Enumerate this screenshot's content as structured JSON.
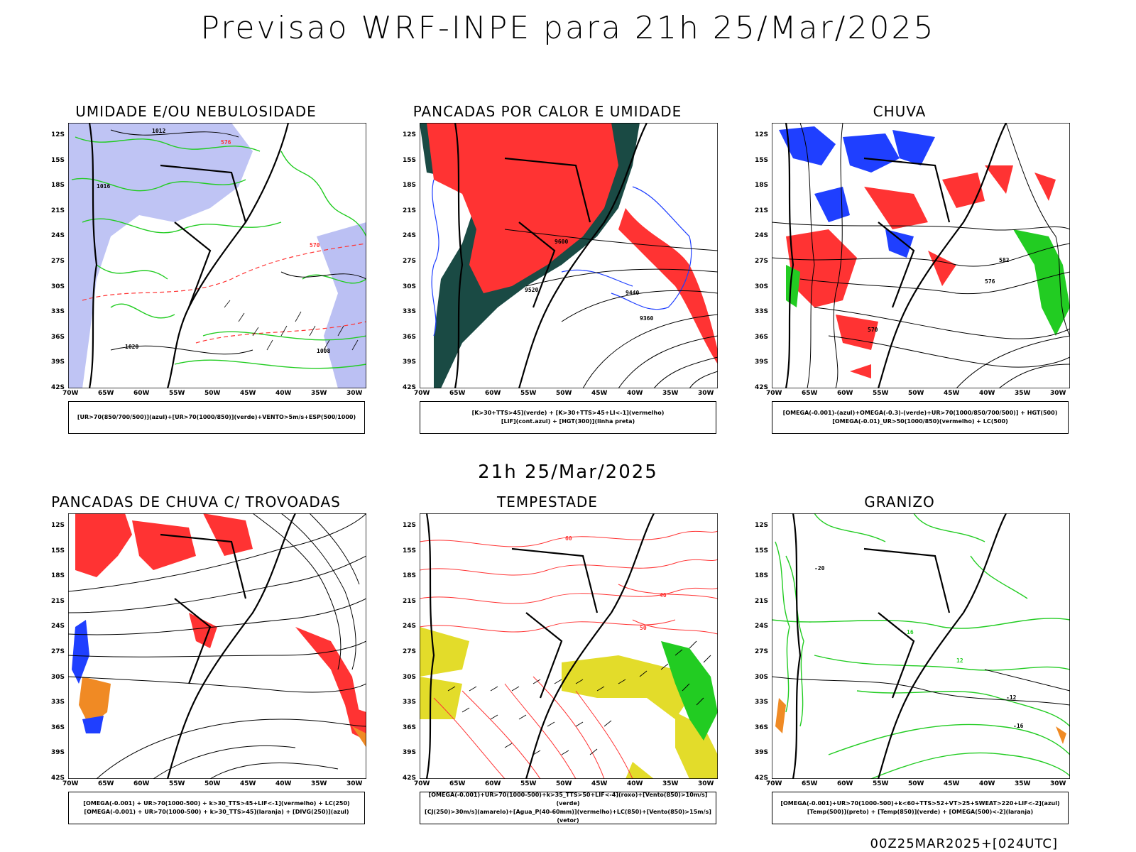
{
  "main_title": "Previsao WRF-INPE  para 21h 25/Mar/2025",
  "subtitle": "21h 25/Mar/2025",
  "footer": "00Z25MAR2025+[024UTC]",
  "lat_ticks": [
    "12S",
    "15S",
    "18S",
    "21S",
    "24S",
    "27S",
    "30S",
    "33S",
    "36S",
    "39S",
    "42S"
  ],
  "lon_ticks": [
    "70W",
    "65W",
    "60W",
    "55W",
    "50W",
    "45W",
    "40W",
    "35W",
    "30W"
  ],
  "panels": [
    {
      "title": "UMIDADE E/OU NEBULOSIDADE",
      "legend_lines": [
        "[UR>70(850/700/500)](azul)+[UR>70(1000/850)](verde)+VENTO>5m/s+ESP(500/1000)"
      ],
      "labels": [
        "1012",
        "1016",
        "1020",
        "1008",
        "570",
        "576"
      ]
    },
    {
      "title": "PANCADAS POR CALOR E UMIDADE",
      "legend_lines": [
        "[K>30+TTS>45](verde)  +  [K>30+TTS>45+LI<-1](vermelho)",
        "[LIF](cont.azul)  +  [HGT(300)](linha preta)"
      ],
      "labels": [
        "9600",
        "9520",
        "9440",
        "9360"
      ]
    },
    {
      "title": "CHUVA",
      "legend_lines": [
        "[OMEGA(-0.001)-(azul)+OMEGA(-0.3)-(verde)+UR>70(1000/850/700/500)]  +  HGT(500)",
        "[OMEGA(-0.01)_UR>50(1000/850)(vermelho)  +  LC(500)"
      ],
      "labels": [
        "582",
        "576",
        "570"
      ]
    },
    {
      "title": "PANCADAS DE CHUVA C/ TROVOADAS",
      "legend_lines": [
        "[OMEGA(-0.001)  +  UR>70(1000-500)  +  k>30_TTS>45+LIF<-1](vermelho)  +  LC(250)",
        "[OMEGA(-0.001)  +  UR>70(1000-500)  +  k>30_TTS>45](laranja)  +  [DIVG(250)](azul)"
      ],
      "labels": []
    },
    {
      "title": "TEMPESTADE",
      "legend_lines": [
        "[OMEGA(-0.001)+UR>70(1000-500)+k>35_TTS>50+LIF<-4](roxo)+[Vento(850)>10m/s](verde)",
        "[CJ(250)>30m/s](amarelo)+[Agua_P(40-60mm)](vermelho)+LC(850)+[Vento(850)>15m/s](vetor)"
      ],
      "labels": [
        "40",
        "50",
        "60"
      ]
    },
    {
      "title": "GRANIZO",
      "legend_lines": [
        "[OMEGA(-0.001)+UR>70(1000-500)+k<60+TTS>52+VT>25+SWEAT>220+LIF<-2](azul)",
        "[Temp(500)](preto)  +  [Temp(850)](verde)  +  [OMEGA(500)<-2](laranja)"
      ],
      "labels": [
        "-12",
        "-16",
        "-20",
        "12",
        "16"
      ]
    }
  ],
  "colors": {
    "blue": "#1f3fff",
    "green": "#22cc22",
    "red": "#ff3333",
    "darkgreen": "#1a4a44",
    "lavender": "#aab0f0",
    "yellow": "#e3dc2a",
    "orange": "#f08a24"
  }
}
